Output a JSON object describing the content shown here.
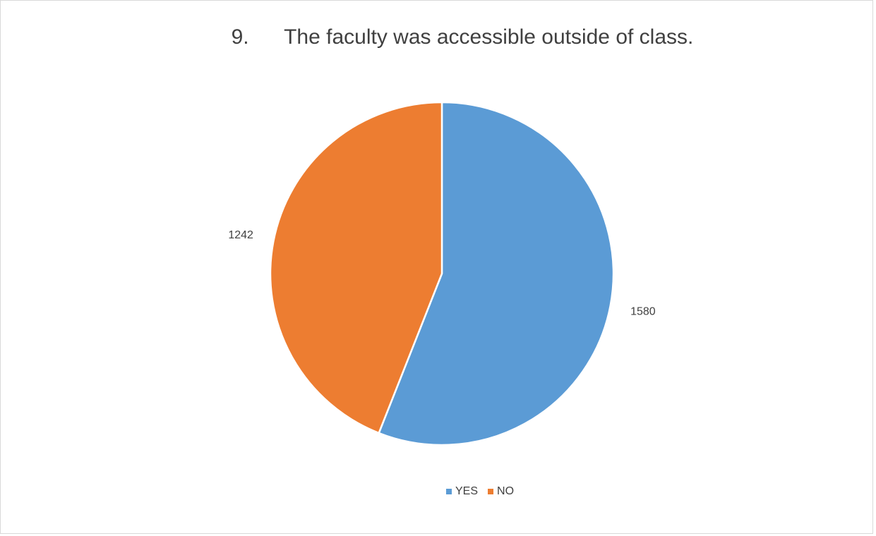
{
  "chart_data": {
    "type": "pie",
    "title": "9.      The faculty was accessible outside of class.",
    "categories": [
      "YES",
      "NO"
    ],
    "values": [
      1580,
      1242
    ],
    "colors": [
      "#5b9bd5",
      "#ed7d31"
    ],
    "legend": "bottom"
  }
}
